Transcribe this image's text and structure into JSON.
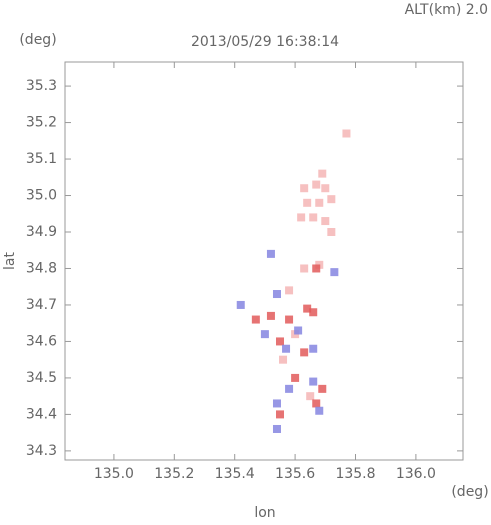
{
  "chart_data": {
    "type": "scatter",
    "title": "2013/05/29 16:38:14",
    "annotation": "ALT(km) 2.0",
    "y_unit": "(deg)",
    "x_unit": "(deg)",
    "xlabel": "lon",
    "ylabel": "lat",
    "xlim": [
      134.838,
      136.156
    ],
    "ylim": [
      34.275,
      35.366
    ],
    "xticks": [
      {
        "value": 135.0,
        "label": "135.0"
      },
      135.2,
      135.4,
      135.6,
      135.8,
      {
        "value": 136.0,
        "label": "136.0"
      }
    ],
    "yticks": [
      34.3,
      34.4,
      34.5,
      34.6,
      34.7,
      34.8,
      34.9,
      {
        "value": 35.0,
        "label": "35.0"
      },
      35.1,
      35.2,
      35.3
    ],
    "series": [
      {
        "color": "#f5b5b5",
        "x": [
          135.63,
          135.67,
          135.7,
          135.64,
          135.68,
          135.72,
          135.62,
          135.66,
          135.7,
          135.72,
          135.69,
          135.77,
          135.63,
          135.68,
          135.58,
          135.6,
          135.56,
          135.65
        ],
        "values": [
          35.02,
          35.03,
          35.02,
          34.98,
          34.98,
          34.99,
          34.94,
          34.94,
          34.93,
          34.9,
          35.06,
          35.17,
          34.8,
          34.81,
          34.74,
          34.62,
          34.55,
          34.45
        ]
      },
      {
        "color": "#e25a5a",
        "x": [
          135.52,
          135.58,
          135.64,
          135.66,
          135.55,
          135.63,
          135.6,
          135.67,
          135.69,
          135.55,
          135.47,
          135.67
        ],
        "values": [
          34.67,
          34.66,
          34.69,
          34.68,
          34.6,
          34.57,
          34.5,
          34.43,
          34.47,
          34.4,
          34.66,
          34.8
        ]
      },
      {
        "color": "#8585e0",
        "x": [
          135.54,
          135.61,
          135.5,
          135.57,
          135.66,
          135.58,
          135.66,
          135.68,
          135.54,
          135.54,
          135.42,
          135.52,
          135.73
        ],
        "values": [
          34.73,
          34.63,
          34.62,
          34.58,
          34.58,
          34.47,
          34.49,
          34.41,
          34.43,
          34.36,
          34.7,
          34.84,
          34.79
        ]
      }
    ]
  }
}
